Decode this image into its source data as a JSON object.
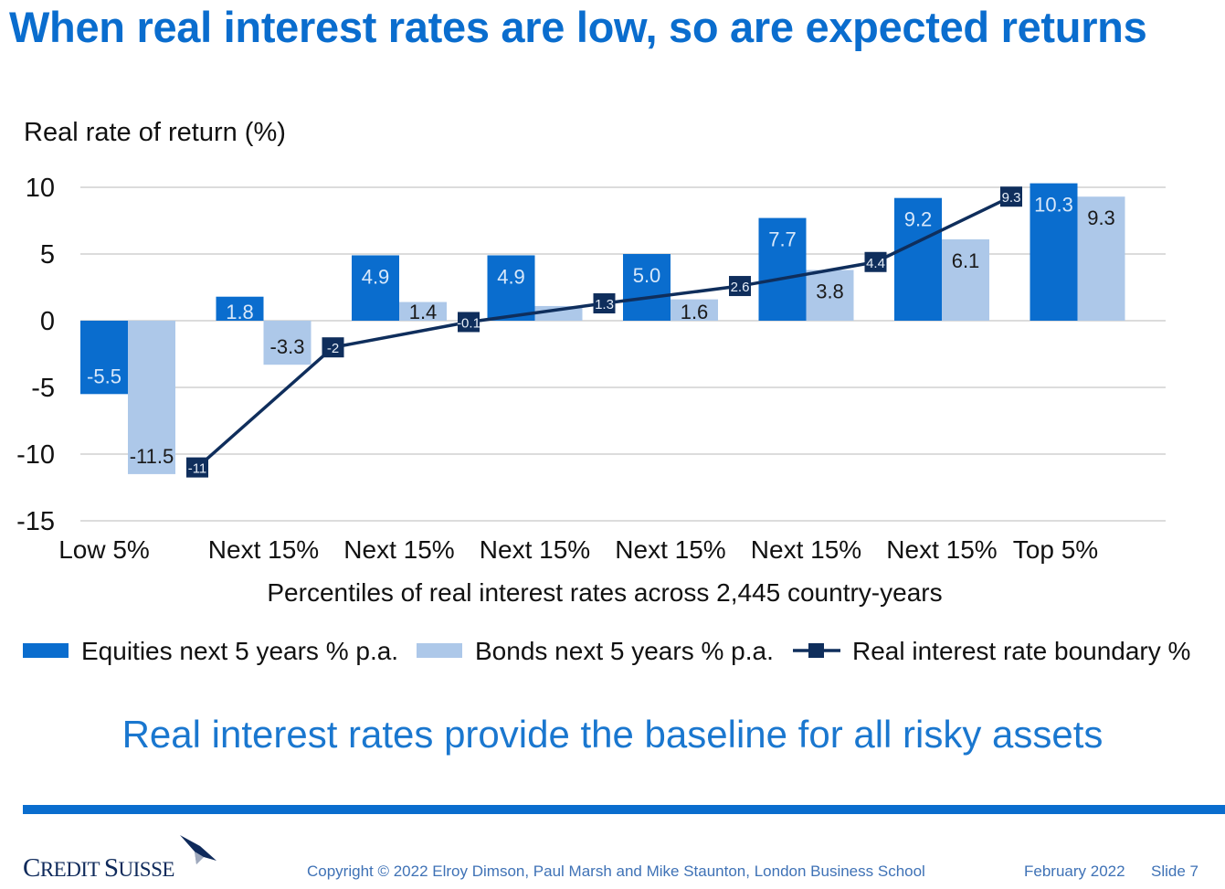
{
  "slide": {
    "title": "When real interest rates are low, so are expected returns",
    "subtitle": "Real interest rates provide the baseline for all risky assets",
    "logo_text_big1": "C",
    "logo_text_small1": "REDIT ",
    "logo_text_big2": "S",
    "logo_text_small2": "UISSE",
    "copyright": "Copyright © 2022 Elroy Dimson, Paul Marsh and Mike Staunton, London Business School",
    "date": "February 2022",
    "slide_number": "Slide 7"
  },
  "colors": {
    "title": "#0a6dce",
    "equities": "#0a6dce",
    "bonds": "#adc8e9",
    "boundary": "#0f2e5c",
    "grid": "#d0d0d0"
  },
  "chart_data": {
    "type": "bar",
    "title": "",
    "ylabel": "Real rate of return (%)",
    "xlabel": "Percentiles of real interest rates across 2,445 country-years",
    "ylim": [
      -15,
      10
    ],
    "yticks": [
      10,
      5,
      0,
      -5,
      -10,
      -15
    ],
    "grid": true,
    "legend_position": "bottom",
    "categories": [
      "Low 5%",
      "Next 15%",
      "Next 15%",
      "Next 15%",
      "Next 15%",
      "Next 15%",
      "Next 15%",
      "Top 5%"
    ],
    "series": [
      {
        "name": "Equities next 5 years % p.a.",
        "kind": "bar",
        "values": [
          -5.5,
          1.8,
          4.9,
          4.9,
          5.0,
          7.7,
          9.2,
          10.3
        ],
        "labels": [
          "-5.5",
          "1.8",
          "4.9",
          "4.9",
          "5.0",
          "7.7",
          "9.2",
          "10.3"
        ]
      },
      {
        "name": "Bonds next 5 years % p.a.",
        "kind": "bar",
        "values": [
          -11.5,
          -3.3,
          1.4,
          1.1,
          1.6,
          3.8,
          6.1,
          9.3
        ],
        "labels": [
          "-11.5",
          "-3.3",
          "1.4",
          "",
          "1.6",
          "3.8",
          "6.1",
          "9.3"
        ]
      },
      {
        "name": "Real interest rate boundary %",
        "kind": "line",
        "boundary_after_category": [
          0,
          1,
          2,
          3,
          4,
          5,
          6
        ],
        "values": [
          -11,
          -2,
          -0.1,
          1.3,
          2.6,
          4.4,
          9.3
        ],
        "labels": [
          "-11",
          "-2",
          "-0.1",
          "1.3",
          "2.6",
          "4.4",
          "9.3"
        ]
      }
    ]
  }
}
